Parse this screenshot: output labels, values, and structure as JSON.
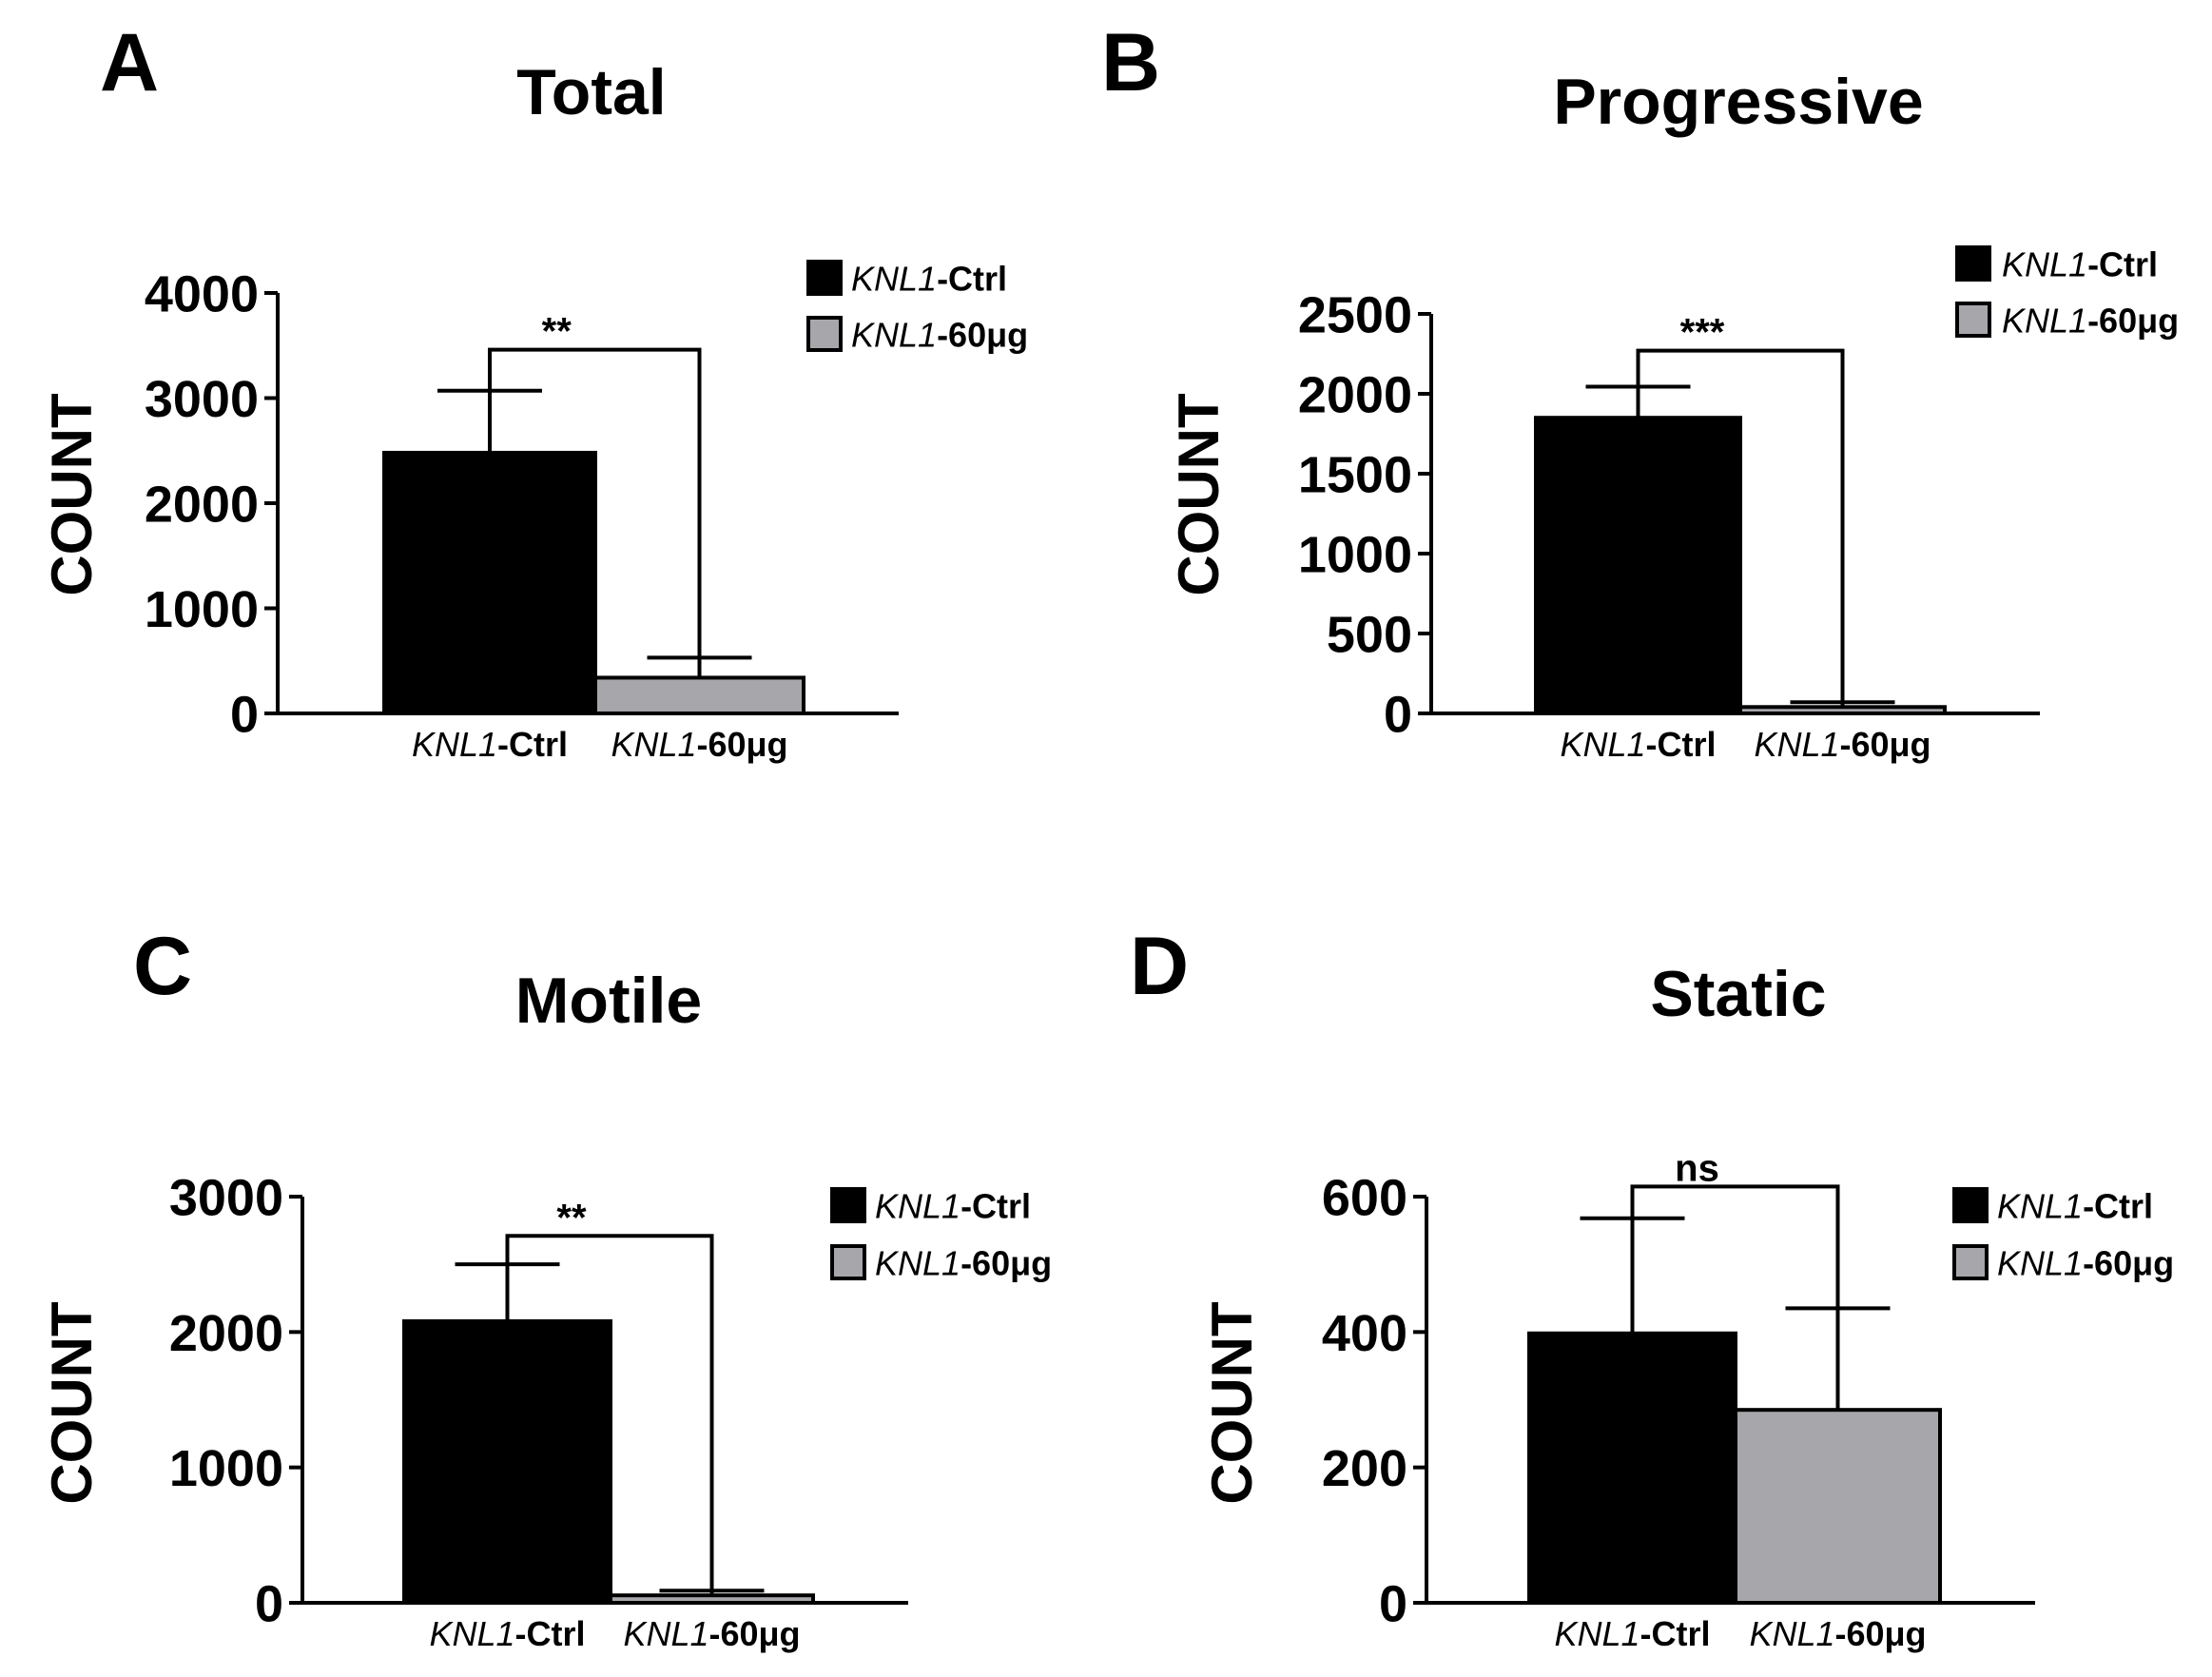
{
  "colors": {
    "ctrl": "#000000",
    "treat": "#a7a6ab",
    "axis": "#000000"
  },
  "chart_data": [
    {
      "panel": "A",
      "type": "bar",
      "title": "Total",
      "ylabel": "COUNT",
      "ylim": [
        0,
        4000
      ],
      "yticks": [
        "0",
        "1000",
        "2000",
        "3000",
        "4000"
      ],
      "ytick_values": [
        0,
        1000,
        2000,
        3000,
        4000
      ],
      "categories": [
        {
          "italic": "KNL1",
          "bold": "-Ctrl"
        },
        {
          "italic": "KNL1",
          "bold": "-60μg"
        }
      ],
      "values": [
        2480,
        340
      ],
      "errors": [
        590,
        190
      ],
      "significance": {
        "label": "**",
        "bracket_value": 3460
      },
      "legend": [
        {
          "italic": "KNL1",
          "bold": "-Ctrl"
        },
        {
          "italic": "KNL1",
          "bold": "-60μg"
        }
      ]
    },
    {
      "panel": "B",
      "type": "bar",
      "title": "Progressive",
      "ylabel": "COUNT",
      "ylim": [
        0,
        2500
      ],
      "yticks": [
        "0",
        "500",
        "1000",
        "1500",
        "2000",
        "2500"
      ],
      "ytick_values": [
        0,
        500,
        1000,
        1500,
        2000,
        2500
      ],
      "categories": [
        {
          "italic": "KNL1",
          "bold": "-Ctrl"
        },
        {
          "italic": "KNL1",
          "bold": "-60μg"
        }
      ],
      "values": [
        1850,
        40
      ],
      "errors": [
        195,
        30
      ],
      "significance": {
        "label": "***",
        "bracket_value": 2270
      },
      "legend": [
        {
          "italic": "KNL1",
          "bold": "-Ctrl"
        },
        {
          "italic": "KNL1",
          "bold": "-60μg"
        }
      ]
    },
    {
      "panel": "C",
      "type": "bar",
      "title": "Motile",
      "ylabel": "COUNT",
      "ylim": [
        0,
        3000
      ],
      "yticks": [
        "0",
        "1000",
        "2000",
        "3000"
      ],
      "ytick_values": [
        0,
        1000,
        2000,
        3000
      ],
      "categories": [
        {
          "italic": "KNL1",
          "bold": "-Ctrl"
        },
        {
          "italic": "KNL1",
          "bold": "-60μg"
        }
      ],
      "values": [
        2080,
        55
      ],
      "errors": [
        420,
        35
      ],
      "significance": {
        "label": "**",
        "bracket_value": 2710
      },
      "legend": [
        {
          "italic": "KNL1",
          "bold": "-Ctrl"
        },
        {
          "italic": "KNL1",
          "bold": "-60μg"
        }
      ]
    },
    {
      "panel": "D",
      "type": "bar",
      "title": "Static",
      "ylabel": "COUNT",
      "ylim": [
        0,
        600
      ],
      "yticks": [
        "0",
        "200",
        "400",
        "600"
      ],
      "ytick_values": [
        0,
        200,
        400,
        600
      ],
      "categories": [
        {
          "italic": "KNL1",
          "bold": "-Ctrl"
        },
        {
          "italic": "KNL1",
          "bold": "-60μg"
        }
      ],
      "values": [
        398,
        285
      ],
      "errors": [
        170,
        150
      ],
      "significance": {
        "label": "ns",
        "bracket_value": 615
      },
      "legend": [
        {
          "italic": "KNL1",
          "bold": "-Ctrl"
        },
        {
          "italic": "KNL1",
          "bold": "-60μg"
        }
      ]
    }
  ]
}
